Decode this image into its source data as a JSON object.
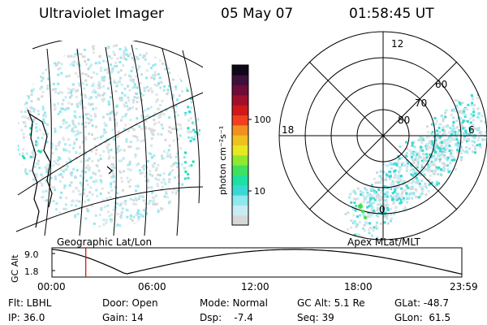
{
  "header": {
    "instrument": "Ultraviolet Imager",
    "date": "05 May 07",
    "time": "01:58:45 UT"
  },
  "colorbar": {
    "unit_label": "photon cm⁻²s⁻¹",
    "ticks": [
      "100",
      "10"
    ],
    "colors": [
      "#d8d8d8",
      "#c8ecf4",
      "#8ee8ee",
      "#3ad8d4",
      "#1ee0a0",
      "#40e060",
      "#90e830",
      "#e8e820",
      "#f0c020",
      "#f09020",
      "#f04020",
      "#d01818",
      "#a0102c",
      "#700c38",
      "#40103c",
      "#100818"
    ]
  },
  "geo_map": {
    "caption": "Geographic Lat/Lon"
  },
  "polar": {
    "caption": "Apex MLat/MLT",
    "lat_labels": [
      "60",
      "70",
      "80"
    ],
    "mlt_labels": [
      "12",
      "18",
      "6",
      "0"
    ]
  },
  "altitude_plot": {
    "ylabel": "GC Alt",
    "yticks": [
      "9.0",
      "1.8"
    ],
    "xticks": [
      "00:00",
      "06:00",
      "12:00",
      "18:00",
      "23:59"
    ],
    "current_time_marker_fraction": 0.0825,
    "marker_color": "#e00000"
  },
  "footer": {
    "filter": "Flt: LBHL",
    "ip": "IP: 36.0",
    "door": "Door: Open",
    "gain": "Gain: 14",
    "mode": "Mode: Normal",
    "dsp": "Dsp:    -7.4",
    "gc_alt": "GC Alt: 5.1 Re",
    "seq": "Seq: 39",
    "glat": "GLat: -48.7",
    "glon": "GLon:  61.5"
  }
}
